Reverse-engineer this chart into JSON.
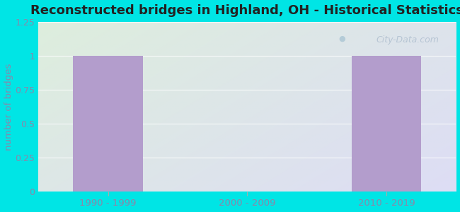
{
  "title": "Reconstructed bridges in Highland, OH - Historical Statistics",
  "categories": [
    "1990 - 1999",
    "2000 - 2009",
    "2010 - 2019"
  ],
  "values": [
    1,
    0,
    1
  ],
  "bar_color": "#b39dcc",
  "ylabel": "number of bridges",
  "ylim": [
    0,
    1.25
  ],
  "yticks": [
    0,
    0.25,
    0.5,
    0.75,
    1,
    1.25
  ],
  "ytick_labels": [
    "0",
    "0.25",
    "0.5",
    "0.75",
    "1",
    "1.25"
  ],
  "background_outer": "#00e5e5",
  "background_plot_topleft": "#ddeedd",
  "background_plot_bottomright": "#ddddf5",
  "title_fontsize": 13,
  "title_color": "#222222",
  "axis_label_color": "#8888aa",
  "tick_label_color": "#8888aa",
  "watermark": "City-Data.com",
  "bar_width": 0.5
}
